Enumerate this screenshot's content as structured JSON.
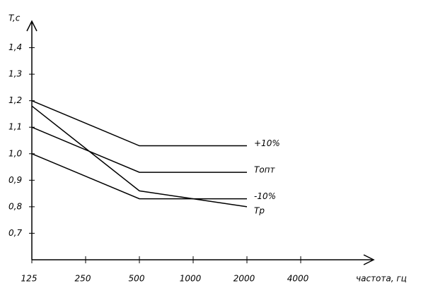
{
  "chart_data": {
    "type": "line",
    "y_label": "T,c",
    "x_label": "частота, гц",
    "categories": [
      "125",
      "250",
      "500",
      "1000",
      "2000",
      "4000"
    ],
    "series": [
      {
        "name": "+10%",
        "color": "#000000",
        "values": [
          1.2,
          1.115,
          1.03,
          1.03,
          1.03,
          null
        ]
      },
      {
        "name": "Топт",
        "color": "#000000",
        "values": [
          1.1,
          1.015,
          0.93,
          0.93,
          0.93,
          null
        ]
      },
      {
        "name": "-10%",
        "color": "#000000",
        "values": [
          1.0,
          0.915,
          0.83,
          0.83,
          0.83,
          null
        ]
      },
      {
        "name": "Тр",
        "color": "#000000",
        "values": [
          1.18,
          1.02,
          0.86,
          0.83,
          0.8,
          null
        ]
      }
    ],
    "ylim": [
      0.6,
      1.5
    ],
    "yticks": [
      {
        "value": 0.7,
        "label": "0,7"
      },
      {
        "value": 0.8,
        "label": "0,8"
      },
      {
        "value": 0.9,
        "label": "0,9"
      },
      {
        "value": 1.0,
        "label": "1,0"
      },
      {
        "value": 1.1,
        "label": "1,1"
      },
      {
        "value": 1.2,
        "label": "1,2"
      },
      {
        "value": 1.3,
        "label": "1,3"
      },
      {
        "value": 1.4,
        "label": "1,4"
      }
    ],
    "grid": false
  }
}
